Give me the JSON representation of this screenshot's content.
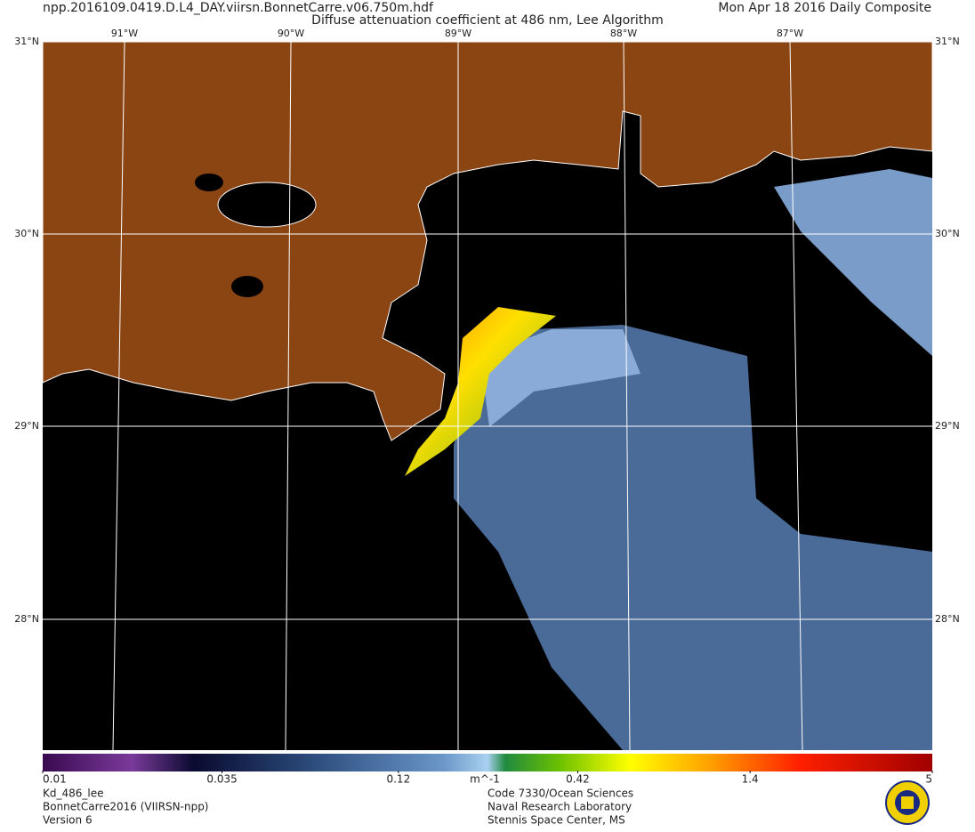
{
  "header": {
    "filename": "npp.2016109.0419.D.L4_DAY.viirsn.BonnetCarre.v06.750m.hdf",
    "title": "Diffuse attenuation coefficient at 486 nm, Lee Algorithm",
    "date": "Mon Apr 18 2016 Daily Composite"
  },
  "map": {
    "lat_labels": [
      "31°N",
      "30°N",
      "29°N",
      "28°N"
    ],
    "lon_labels": [
      "91°W",
      "90°W",
      "89°W",
      "88°W",
      "87°W"
    ]
  },
  "colorbar": {
    "scale": "log",
    "range": [
      0.01,
      5
    ],
    "ticks": [
      0.01,
      0.035,
      0.12,
      0.42,
      1.4,
      5
    ],
    "unit": "m^-1"
  },
  "footer": {
    "left": [
      "Kd_486_lee",
      "BonnetCarre2016 (VIIRSN-npp)",
      "Version 6"
    ],
    "center": [
      "Code 7330/Ocean Sciences",
      "Naval Research Laboratory",
      "Stennis Space Center, MS"
    ]
  }
}
